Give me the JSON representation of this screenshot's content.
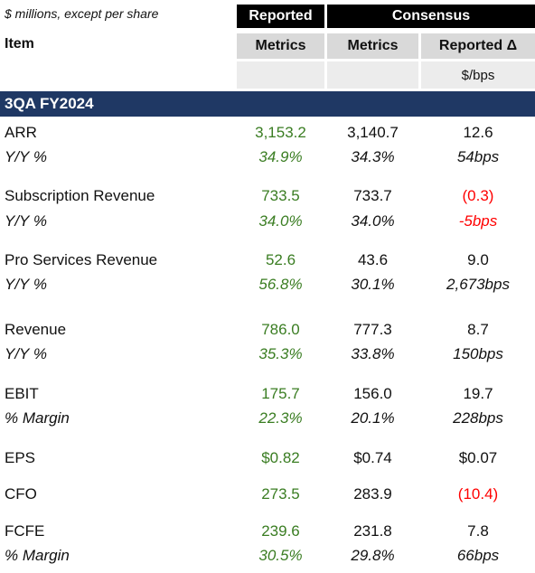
{
  "header": {
    "note": "$ millions, except per share",
    "reported": "Reported",
    "consensus": "Consensus",
    "item": "Item",
    "metrics_reported": "Metrics",
    "metrics_consensus": "Metrics",
    "reported_delta": "Reported Δ",
    "delta_unit": "$/bps"
  },
  "section": {
    "title": "3QA FY2024"
  },
  "rows": [
    {
      "label": "ARR",
      "reported": "3,153.2",
      "consensus": "3,140.7",
      "delta": "12.6"
    },
    {
      "label": "Y/Y %",
      "reported": "34.9%",
      "consensus": "34.3%",
      "delta": "54bps"
    },
    {
      "label": "Subscription Revenue",
      "reported": "733.5",
      "consensus": "733.7",
      "delta": "(0.3)"
    },
    {
      "label": "Y/Y %",
      "reported": "34.0%",
      "consensus": "34.0%",
      "delta": "-5bps"
    },
    {
      "label": "Pro Services Revenue",
      "reported": "52.6",
      "consensus": "43.6",
      "delta": "9.0"
    },
    {
      "label": "Y/Y %",
      "reported": "56.8%",
      "consensus": "30.1%",
      "delta": "2,673bps"
    },
    {
      "label": "Revenue",
      "reported": "786.0",
      "consensus": "777.3",
      "delta": "8.7"
    },
    {
      "label": "Y/Y %",
      "reported": "35.3%",
      "consensus": "33.8%",
      "delta": "150bps"
    },
    {
      "label": "EBIT",
      "reported": "175.7",
      "consensus": "156.0",
      "delta": "19.7"
    },
    {
      "label": "% Margin",
      "reported": "22.3%",
      "consensus": "20.1%",
      "delta": "228bps"
    },
    {
      "label": "EPS",
      "reported": "$0.82",
      "consensus": "$0.74",
      "delta": "$0.07"
    },
    {
      "label": "CFO",
      "reported": "273.5",
      "consensus": "283.9",
      "delta": "(10.4)"
    },
    {
      "label": "FCFE",
      "reported": "239.6",
      "consensus": "231.8",
      "delta": "7.8"
    },
    {
      "label": "% Margin",
      "reported": "30.5%",
      "consensus": "29.8%",
      "delta": "66bps"
    }
  ],
  "colors": {
    "reported_values": "#3a7d22",
    "negative": "#ff0000",
    "section_bar": "#1f3864",
    "header_black": "#000000",
    "header_gray": "#d9d9d9"
  }
}
